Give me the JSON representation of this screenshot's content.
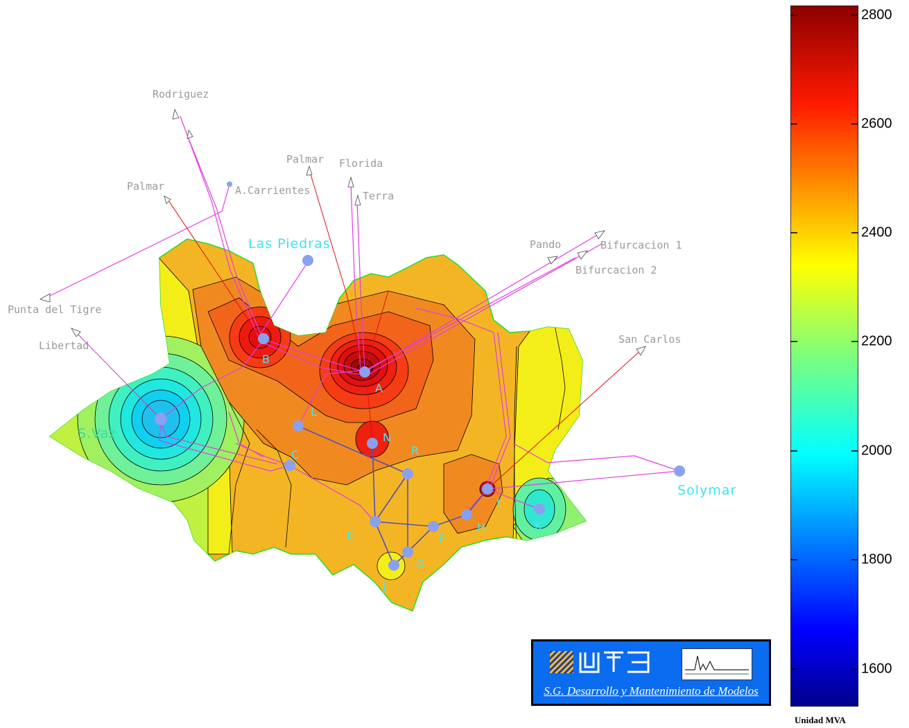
{
  "colorbar": {
    "ticks": [
      "2800",
      "2600",
      "2400",
      "2200",
      "2000",
      "1800",
      "1600"
    ],
    "unit_label": "Unidad MVA"
  },
  "external_lines": {
    "rodriguez": "Rodriguez",
    "palmar_1": "Palmar",
    "palmar_2": "Palmar",
    "florida": "Florida",
    "terra": "Terra",
    "a_carrientes": "A.Carrientes",
    "punta_del_tigre": "Punta del Tigre",
    "libertad": "Libertad",
    "pando": "Pando",
    "bifurcacion_1": "Bifurcacion 1",
    "bifurcacion_2": "Bifurcacion 2",
    "san_carlos": "San Carlos"
  },
  "cities": {
    "las_piedras": "Las Piedras",
    "solymar": "Solymar",
    "s_vaz": "S.Vaz"
  },
  "nodes": {
    "A": "A",
    "B": "B",
    "C": "C",
    "E": "E",
    "F": "F",
    "G": "G",
    "H": "H",
    "I": "I",
    "J": "J",
    "K": "K",
    "L": "L",
    "N": "N",
    "R": "R"
  },
  "logo": {
    "brand": "UTE",
    "caption": "S.G. Desarrollo y Mantenimiento de Modelos"
  },
  "colors": {
    "land_outline": "#22dd22",
    "line_magenta": "#e23ce2",
    "line_red": "#e01010",
    "line_blue": "#5050b8",
    "node": "#8aa0f0",
    "logo_bg": "#0b6cf0"
  }
}
